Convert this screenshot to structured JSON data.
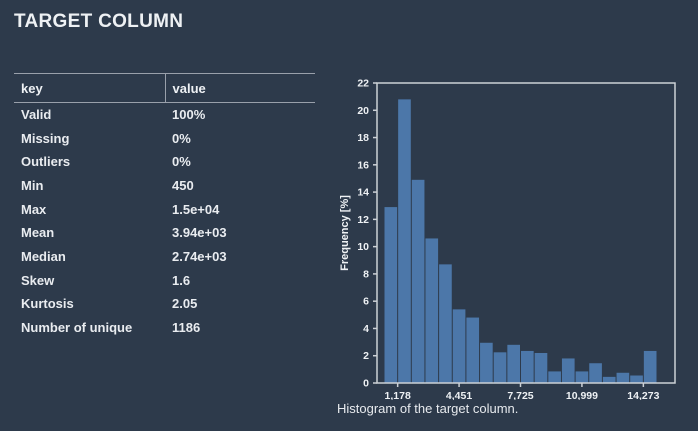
{
  "page": {
    "title": "TARGET COLUMN",
    "background_color": "#2d3a4b",
    "text_color": "#eef1f4"
  },
  "table": {
    "headers": [
      "key",
      "value"
    ],
    "rows": [
      [
        "Valid",
        "100%"
      ],
      [
        "Missing",
        "0%"
      ],
      [
        "Outliers",
        "0%"
      ],
      [
        "Min",
        "450"
      ],
      [
        "Max",
        "1.5e+04"
      ],
      [
        "Mean",
        "3.94e+03"
      ],
      [
        "Median",
        "2.74e+03"
      ],
      [
        "Skew",
        "1.6"
      ],
      [
        "Kurtosis",
        "2.05"
      ],
      [
        "Number of unique",
        "1186"
      ]
    ]
  },
  "chart_data": {
    "type": "bar",
    "title": "",
    "xlabel": "",
    "ylabel": "Frequency [%]",
    "caption": "Histogram of the target column.",
    "bin_start": 450,
    "bin_width": 727.5,
    "values": [
      12.9,
      20.8,
      14.9,
      10.6,
      8.7,
      5.4,
      4.8,
      2.95,
      2.25,
      2.8,
      2.35,
      2.2,
      0.85,
      1.8,
      0.85,
      1.45,
      0.45,
      0.75,
      0.55,
      2.35
    ],
    "ylim": [
      0,
      22
    ],
    "ytick_step": 2,
    "xticks": [
      {
        "value": 1178,
        "label": "1,178"
      },
      {
        "value": 4451,
        "label": "4,451"
      },
      {
        "value": 7725,
        "label": "7,725"
      },
      {
        "value": 10999,
        "label": "10,999"
      },
      {
        "value": 14273,
        "label": "14,273"
      }
    ],
    "grid": false,
    "legend": null,
    "bar_color": "#4c77a9",
    "axis_color": "#ccd1d6"
  }
}
